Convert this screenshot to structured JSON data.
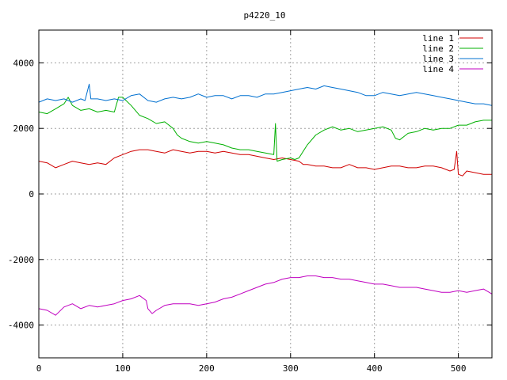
{
  "chart_data": {
    "type": "line",
    "title": "p4220_10",
    "xlabel": "",
    "ylabel": "",
    "xlim": [
      0,
      540
    ],
    "ylim": [
      -5000,
      5000
    ],
    "xticks": [
      0,
      100,
      200,
      300,
      400,
      500
    ],
    "yticks": [
      -4000,
      -2000,
      0,
      2000,
      4000
    ],
    "grid": true,
    "legend": "top-right",
    "series": [
      {
        "name": "line 1",
        "color": "#d00000",
        "points": [
          [
            0,
            1000
          ],
          [
            10,
            950
          ],
          [
            20,
            800
          ],
          [
            30,
            900
          ],
          [
            40,
            1000
          ],
          [
            50,
            950
          ],
          [
            60,
            900
          ],
          [
            70,
            950
          ],
          [
            80,
            900
          ],
          [
            90,
            1100
          ],
          [
            100,
            1200
          ],
          [
            110,
            1300
          ],
          [
            120,
            1350
          ],
          [
            130,
            1350
          ],
          [
            140,
            1300
          ],
          [
            150,
            1250
          ],
          [
            160,
            1350
          ],
          [
            170,
            1300
          ],
          [
            180,
            1250
          ],
          [
            190,
            1300
          ],
          [
            200,
            1300
          ],
          [
            210,
            1250
          ],
          [
            220,
            1300
          ],
          [
            230,
            1250
          ],
          [
            240,
            1200
          ],
          [
            250,
            1200
          ],
          [
            260,
            1150
          ],
          [
            270,
            1100
          ],
          [
            280,
            1050
          ],
          [
            290,
            1100
          ],
          [
            300,
            1050
          ],
          [
            310,
            1000
          ],
          [
            315,
            900
          ],
          [
            320,
            900
          ],
          [
            330,
            850
          ],
          [
            340,
            850
          ],
          [
            350,
            800
          ],
          [
            360,
            800
          ],
          [
            370,
            900
          ],
          [
            380,
            800
          ],
          [
            390,
            800
          ],
          [
            400,
            750
          ],
          [
            410,
            800
          ],
          [
            420,
            850
          ],
          [
            430,
            850
          ],
          [
            440,
            800
          ],
          [
            450,
            800
          ],
          [
            460,
            850
          ],
          [
            470,
            850
          ],
          [
            480,
            800
          ],
          [
            490,
            700
          ],
          [
            495,
            750
          ],
          [
            498,
            1300
          ],
          [
            500,
            600
          ],
          [
            505,
            550
          ],
          [
            510,
            700
          ],
          [
            520,
            650
          ],
          [
            530,
            600
          ],
          [
            540,
            600
          ]
        ]
      },
      {
        "name": "line 2",
        "color": "#00b000",
        "points": [
          [
            0,
            2500
          ],
          [
            10,
            2450
          ],
          [
            20,
            2600
          ],
          [
            30,
            2750
          ],
          [
            35,
            2950
          ],
          [
            40,
            2700
          ],
          [
            50,
            2550
          ],
          [
            60,
            2600
          ],
          [
            70,
            2500
          ],
          [
            80,
            2550
          ],
          [
            90,
            2500
          ],
          [
            95,
            2950
          ],
          [
            100,
            2950
          ],
          [
            110,
            2700
          ],
          [
            120,
            2400
          ],
          [
            130,
            2300
          ],
          [
            140,
            2150
          ],
          [
            150,
            2200
          ],
          [
            160,
            2000
          ],
          [
            165,
            1800
          ],
          [
            170,
            1700
          ],
          [
            180,
            1600
          ],
          [
            190,
            1550
          ],
          [
            200,
            1600
          ],
          [
            210,
            1550
          ],
          [
            220,
            1500
          ],
          [
            230,
            1400
          ],
          [
            240,
            1350
          ],
          [
            250,
            1350
          ],
          [
            260,
            1300
          ],
          [
            270,
            1250
          ],
          [
            280,
            1200
          ],
          [
            282,
            2150
          ],
          [
            284,
            1000
          ],
          [
            290,
            1050
          ],
          [
            300,
            1100
          ],
          [
            305,
            1050
          ],
          [
            310,
            1100
          ],
          [
            320,
            1500
          ],
          [
            330,
            1800
          ],
          [
            340,
            1950
          ],
          [
            350,
            2050
          ],
          [
            360,
            1950
          ],
          [
            370,
            2000
          ],
          [
            380,
            1900
          ],
          [
            390,
            1950
          ],
          [
            400,
            2000
          ],
          [
            410,
            2050
          ],
          [
            420,
            1950
          ],
          [
            425,
            1700
          ],
          [
            430,
            1650
          ],
          [
            440,
            1850
          ],
          [
            450,
            1900
          ],
          [
            460,
            2000
          ],
          [
            470,
            1950
          ],
          [
            480,
            2000
          ],
          [
            490,
            2000
          ],
          [
            500,
            2100
          ],
          [
            510,
            2100
          ],
          [
            520,
            2200
          ],
          [
            530,
            2250
          ],
          [
            540,
            2250
          ]
        ]
      },
      {
        "name": "line 3",
        "color": "#0070d0",
        "points": [
          [
            0,
            2800
          ],
          [
            10,
            2900
          ],
          [
            20,
            2850
          ],
          [
            30,
            2900
          ],
          [
            40,
            2800
          ],
          [
            50,
            2900
          ],
          [
            55,
            2850
          ],
          [
            60,
            3350
          ],
          [
            62,
            2900
          ],
          [
            70,
            2900
          ],
          [
            80,
            2850
          ],
          [
            90,
            2900
          ],
          [
            100,
            2850
          ],
          [
            110,
            3000
          ],
          [
            120,
            3050
          ],
          [
            130,
            2850
          ],
          [
            140,
            2800
          ],
          [
            150,
            2900
          ],
          [
            160,
            2950
          ],
          [
            170,
            2900
          ],
          [
            180,
            2950
          ],
          [
            190,
            3050
          ],
          [
            200,
            2950
          ],
          [
            210,
            3000
          ],
          [
            220,
            3000
          ],
          [
            230,
            2900
          ],
          [
            240,
            3000
          ],
          [
            250,
            3000
          ],
          [
            260,
            2950
          ],
          [
            270,
            3050
          ],
          [
            280,
            3050
          ],
          [
            290,
            3100
          ],
          [
            300,
            3150
          ],
          [
            310,
            3200
          ],
          [
            320,
            3250
          ],
          [
            330,
            3200
          ],
          [
            340,
            3300
          ],
          [
            350,
            3250
          ],
          [
            360,
            3200
          ],
          [
            370,
            3150
          ],
          [
            380,
            3100
          ],
          [
            390,
            3000
          ],
          [
            400,
            3000
          ],
          [
            410,
            3100
          ],
          [
            420,
            3050
          ],
          [
            430,
            3000
          ],
          [
            440,
            3050
          ],
          [
            450,
            3100
          ],
          [
            460,
            3050
          ],
          [
            470,
            3000
          ],
          [
            480,
            2950
          ],
          [
            490,
            2900
          ],
          [
            500,
            2850
          ],
          [
            510,
            2800
          ],
          [
            520,
            2750
          ],
          [
            530,
            2750
          ],
          [
            540,
            2700
          ]
        ]
      },
      {
        "name": "line 4",
        "color": "#c000c0",
        "points": [
          [
            0,
            -3500
          ],
          [
            10,
            -3550
          ],
          [
            20,
            -3700
          ],
          [
            30,
            -3450
          ],
          [
            40,
            -3350
          ],
          [
            50,
            -3500
          ],
          [
            60,
            -3400
          ],
          [
            70,
            -3450
          ],
          [
            80,
            -3400
          ],
          [
            90,
            -3350
          ],
          [
            100,
            -3250
          ],
          [
            110,
            -3200
          ],
          [
            120,
            -3100
          ],
          [
            128,
            -3250
          ],
          [
            130,
            -3500
          ],
          [
            135,
            -3650
          ],
          [
            140,
            -3550
          ],
          [
            150,
            -3400
          ],
          [
            160,
            -3350
          ],
          [
            170,
            -3350
          ],
          [
            180,
            -3350
          ],
          [
            190,
            -3400
          ],
          [
            200,
            -3350
          ],
          [
            210,
            -3300
          ],
          [
            220,
            -3200
          ],
          [
            230,
            -3150
          ],
          [
            240,
            -3050
          ],
          [
            250,
            -2950
          ],
          [
            260,
            -2850
          ],
          [
            270,
            -2750
          ],
          [
            280,
            -2700
          ],
          [
            290,
            -2600
          ],
          [
            300,
            -2550
          ],
          [
            310,
            -2550
          ],
          [
            320,
            -2500
          ],
          [
            330,
            -2500
          ],
          [
            340,
            -2550
          ],
          [
            350,
            -2550
          ],
          [
            360,
            -2600
          ],
          [
            370,
            -2600
          ],
          [
            380,
            -2650
          ],
          [
            390,
            -2700
          ],
          [
            400,
            -2750
          ],
          [
            410,
            -2750
          ],
          [
            420,
            -2800
          ],
          [
            430,
            -2850
          ],
          [
            440,
            -2850
          ],
          [
            450,
            -2850
          ],
          [
            460,
            -2900
          ],
          [
            470,
            -2950
          ],
          [
            480,
            -3000
          ],
          [
            490,
            -3000
          ],
          [
            500,
            -2950
          ],
          [
            510,
            -3000
          ],
          [
            520,
            -2950
          ],
          [
            530,
            -2900
          ],
          [
            540,
            -3050
          ]
        ]
      }
    ]
  }
}
